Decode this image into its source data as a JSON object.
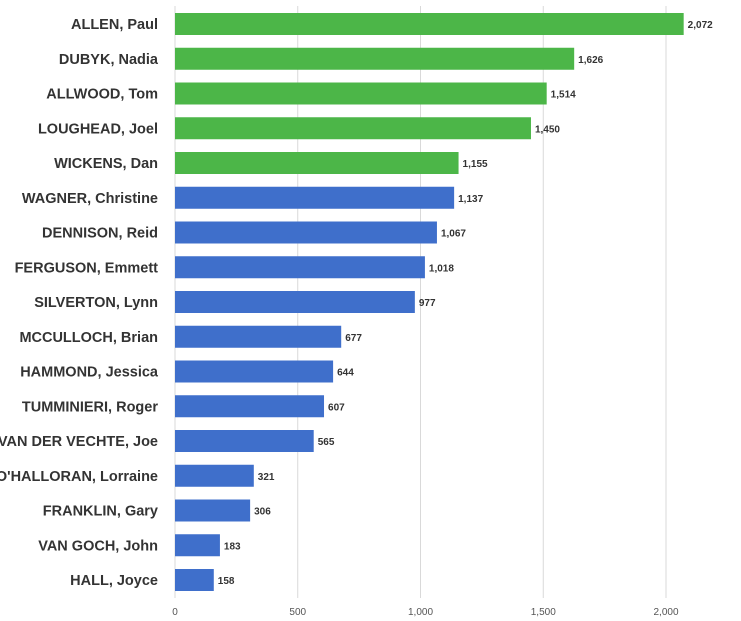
{
  "chart_data": {
    "type": "bar",
    "orientation": "horizontal",
    "title": "",
    "xlabel": "",
    "ylabel": "",
    "xlim": [
      0,
      2200
    ],
    "grid": true,
    "legend": "none",
    "x_ticks": [
      0,
      500,
      1000,
      1500,
      2000
    ],
    "x_tick_labels": [
      "0",
      "500",
      "1,000",
      "1,500",
      "2,000"
    ],
    "categories": [
      "ALLEN, Paul",
      "DUBYK, Nadia",
      "ALLWOOD, Tom",
      "LOUGHEAD, Joel",
      "WICKENS, Dan",
      "WAGNER, Christine",
      "DENNISON, Reid",
      "FERGUSON, Emmett",
      "SILVERTON, Lynn",
      "MCCULLOCH, Brian",
      "HAMMOND, Jessica",
      "TUMMINIERI, Roger",
      "VAN DER VECHTE, Joe",
      "O'HALLORAN, Lorraine",
      "FRANKLIN, Gary",
      "VAN GOCH, John",
      "HALL, Joyce"
    ],
    "values": [
      2072,
      1626,
      1514,
      1450,
      1155,
      1137,
      1067,
      1018,
      977,
      677,
      644,
      607,
      565,
      321,
      306,
      183,
      158
    ],
    "value_labels": [
      "2,072",
      "1,626",
      "1,514",
      "1,450",
      "1,155",
      "1,137",
      "1,067",
      "1,018",
      "977",
      "677",
      "644",
      "607",
      "565",
      "321",
      "306",
      "183",
      "158"
    ],
    "bar_colors": [
      "#4cb648",
      "#4cb648",
      "#4cb648",
      "#4cb648",
      "#4cb648",
      "#3f6fcb",
      "#3f6fcb",
      "#3f6fcb",
      "#3f6fcb",
      "#3f6fcb",
      "#3f6fcb",
      "#3f6fcb",
      "#3f6fcb",
      "#3f6fcb",
      "#3f6fcb",
      "#3f6fcb",
      "#3f6fcb"
    ]
  }
}
